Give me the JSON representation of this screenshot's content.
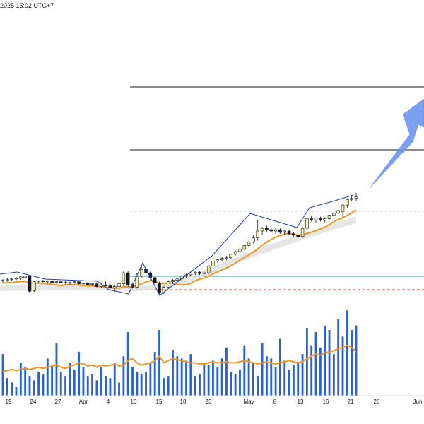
{
  "header": {
    "timestamp": "2025 15:02 UTC+7"
  },
  "x_axis": {
    "ticks": [
      "19",
      "24",
      "27",
      "Apr",
      "4",
      "10",
      "15",
      "18",
      "23",
      "May",
      "8",
      "13",
      "16",
      "21",
      "26",
      "Jun"
    ]
  },
  "colors": {
    "up_candle": "#f5f2a8",
    "down_candle": "#131722",
    "volume": "#2a62d6",
    "ma_line": "#f0961e",
    "zigzag": "#1f3fbf",
    "arrow": "#6d96f0",
    "support_line": "#26a69a",
    "stop_line": "#e53935",
    "resistance": "#131722"
  },
  "chart_data": {
    "type": "candlestick",
    "x_labels": [
      "19",
      "24",
      "27",
      "Apr",
      "4",
      "10",
      "15",
      "18",
      "23",
      "May",
      "8",
      "13",
      "16",
      "21",
      "26",
      "Jun"
    ],
    "candles": [
      {
        "o": 3,
        "h": 6,
        "l": 0,
        "c": 4
      },
      {
        "o": 4,
        "h": 7,
        "l": 2,
        "c": 5
      },
      {
        "o": 5,
        "h": 8,
        "l": 3,
        "c": 6
      },
      {
        "o": 6,
        "h": 9,
        "l": 4,
        "c": 7
      },
      {
        "o": 7,
        "h": 10,
        "l": 5,
        "c": 9
      },
      {
        "o": 8,
        "h": 11,
        "l": 6,
        "c": 10
      },
      {
        "o": 10,
        "h": 11,
        "l": -15,
        "c": -12
      },
      {
        "o": -11,
        "h": 3,
        "l": -13,
        "c": 2
      },
      {
        "o": 2,
        "h": 4,
        "l": 0,
        "c": 3
      },
      {
        "o": 3,
        "h": 5,
        "l": 1,
        "c": 2
      },
      {
        "o": 2,
        "h": 4,
        "l": 0,
        "c": 3
      },
      {
        "o": 3,
        "h": 4,
        "l": 0,
        "c": 1
      },
      {
        "o": 1,
        "h": 3,
        "l": -1,
        "c": 2
      },
      {
        "o": 2,
        "h": 4,
        "l": 0,
        "c": 1
      },
      {
        "o": 1,
        "h": 3,
        "l": -1,
        "c": 0
      },
      {
        "o": 0,
        "h": 2,
        "l": -2,
        "c": 1
      },
      {
        "o": 1,
        "h": 3,
        "l": -1,
        "c": 2
      },
      {
        "o": 2,
        "h": 3,
        "l": -2,
        "c": -1
      },
      {
        "o": -1,
        "h": 1,
        "l": -3,
        "c": 0
      },
      {
        "o": 0,
        "h": 2,
        "l": -3,
        "c": -2
      },
      {
        "o": -2,
        "h": 0,
        "l": -4,
        "c": -1
      },
      {
        "o": -1,
        "h": 1,
        "l": -6,
        "c": -5
      },
      {
        "o": -5,
        "h": 0,
        "l": -7,
        "c": -3
      },
      {
        "o": -3,
        "h": 3,
        "l": -5,
        "c": -4
      },
      {
        "o": -4,
        "h": 0,
        "l": -8,
        "c": -7
      },
      {
        "o": -7,
        "h": -2,
        "l": -13,
        "c": -5
      },
      {
        "o": -5,
        "h": 2,
        "l": -7,
        "c": -1
      },
      {
        "o": -1,
        "h": 18,
        "l": -4,
        "c": 15
      },
      {
        "o": 15,
        "h": 17,
        "l": -5,
        "c": -2
      },
      {
        "o": -2,
        "h": 1,
        "l": -8,
        "c": -6
      },
      {
        "o": -6,
        "h": 15,
        "l": -8,
        "c": 10
      },
      {
        "o": 10,
        "h": 25,
        "l": 8,
        "c": 20
      },
      {
        "o": 20,
        "h": 22,
        "l": 12,
        "c": 15
      },
      {
        "o": 15,
        "h": 17,
        "l": 4,
        "c": 8
      },
      {
        "o": 8,
        "h": 10,
        "l": -2,
        "c": 0
      },
      {
        "o": 0,
        "h": 2,
        "l": -17,
        "c": -14
      },
      {
        "o": -14,
        "h": -4,
        "l": -16,
        "c": -6
      },
      {
        "o": -6,
        "h": 4,
        "l": -8,
        "c": 2
      },
      {
        "o": 2,
        "h": 6,
        "l": -1,
        "c": 4
      },
      {
        "o": 4,
        "h": 8,
        "l": 2,
        "c": 6
      },
      {
        "o": 6,
        "h": 12,
        "l": 4,
        "c": 10
      },
      {
        "o": 10,
        "h": 14,
        "l": 8,
        "c": 12
      },
      {
        "o": 12,
        "h": 16,
        "l": 10,
        "c": 15
      },
      {
        "o": 15,
        "h": 18,
        "l": 12,
        "c": 16
      },
      {
        "o": 16,
        "h": 18,
        "l": 12,
        "c": 14
      },
      {
        "o": 14,
        "h": 17,
        "l": 10,
        "c": 15
      },
      {
        "o": 15,
        "h": 26,
        "l": 13,
        "c": 25
      },
      {
        "o": 25,
        "h": 33,
        "l": 23,
        "c": 32
      },
      {
        "o": 32,
        "h": 36,
        "l": 30,
        "c": 34
      },
      {
        "o": 34,
        "h": 38,
        "l": 32,
        "c": 36
      },
      {
        "o": 36,
        "h": 40,
        "l": 33,
        "c": 37
      },
      {
        "o": 37,
        "h": 43,
        "l": 35,
        "c": 42
      },
      {
        "o": 42,
        "h": 48,
        "l": 40,
        "c": 46
      },
      {
        "o": 46,
        "h": 52,
        "l": 44,
        "c": 50
      },
      {
        "o": 50,
        "h": 56,
        "l": 48,
        "c": 55
      },
      {
        "o": 55,
        "h": 62,
        "l": 52,
        "c": 60
      },
      {
        "o": 60,
        "h": 70,
        "l": 58,
        "c": 66
      },
      {
        "o": 66,
        "h": 92,
        "l": 62,
        "c": 76
      },
      {
        "o": 76,
        "h": 82,
        "l": 70,
        "c": 80
      },
      {
        "o": 80,
        "h": 84,
        "l": 74,
        "c": 78
      },
      {
        "o": 78,
        "h": 82,
        "l": 74,
        "c": 76
      },
      {
        "o": 76,
        "h": 80,
        "l": 72,
        "c": 78
      },
      {
        "o": 78,
        "h": 80,
        "l": 72,
        "c": 74
      },
      {
        "o": 74,
        "h": 78,
        "l": 70,
        "c": 76
      },
      {
        "o": 76,
        "h": 78,
        "l": 70,
        "c": 72
      },
      {
        "o": 72,
        "h": 75,
        "l": 68,
        "c": 70
      },
      {
        "o": 70,
        "h": 72,
        "l": 66,
        "c": 68
      },
      {
        "o": 68,
        "h": 82,
        "l": 66,
        "c": 80
      },
      {
        "o": 80,
        "h": 96,
        "l": 78,
        "c": 94
      },
      {
        "o": 94,
        "h": 98,
        "l": 90,
        "c": 92
      },
      {
        "o": 92,
        "h": 96,
        "l": 88,
        "c": 95
      },
      {
        "o": 95,
        "h": 97,
        "l": 90,
        "c": 92
      },
      {
        "o": 92,
        "h": 96,
        "l": 89,
        "c": 94
      },
      {
        "o": 94,
        "h": 100,
        "l": 92,
        "c": 99
      },
      {
        "o": 99,
        "h": 104,
        "l": 96,
        "c": 102
      },
      {
        "o": 102,
        "h": 108,
        "l": 98,
        "c": 106
      },
      {
        "o": 104,
        "h": 116,
        "l": 96,
        "c": 114
      },
      {
        "o": 114,
        "h": 124,
        "l": 110,
        "c": 122
      },
      {
        "o": 122,
        "h": 128,
        "l": 119,
        "c": 124
      },
      {
        "o": 124,
        "h": 132,
        "l": 120,
        "c": 126
      }
    ],
    "volume": [
      38,
      16,
      12,
      8,
      30,
      26,
      18,
      14,
      22,
      20,
      34,
      28,
      48,
      22,
      18,
      30,
      24,
      40,
      26,
      18,
      20,
      14,
      26,
      18,
      16,
      30,
      12,
      36,
      58,
      26,
      22,
      20,
      22,
      30,
      40,
      60,
      16,
      18,
      42,
      36,
      34,
      32,
      38,
      18,
      20,
      30,
      28,
      32,
      26,
      34,
      44,
      22,
      20,
      24,
      46,
      34,
      30,
      18,
      48,
      36,
      34,
      26,
      52,
      32,
      24,
      28,
      30,
      38,
      62,
      46,
      58,
      44,
      64,
      60,
      38,
      70,
      54,
      78,
      60,
      64
    ],
    "ma": [
      22,
      23,
      24,
      23,
      24,
      25,
      24,
      25,
      26,
      25,
      26,
      27,
      28,
      26,
      25,
      27,
      28,
      30,
      29,
      27,
      28,
      26,
      28,
      27,
      28,
      29,
      27,
      28,
      32,
      34,
      30,
      28,
      29,
      30,
      32,
      36,
      30,
      32,
      34,
      33,
      32,
      31,
      30,
      30,
      29,
      29,
      30,
      31,
      30,
      30,
      31,
      30,
      30,
      31,
      32,
      31,
      30,
      29,
      30,
      31,
      30,
      29,
      30,
      31,
      32,
      31,
      30,
      31,
      34,
      36,
      38,
      37,
      39,
      40,
      41,
      43,
      44,
      46,
      44,
      40
    ]
  }
}
